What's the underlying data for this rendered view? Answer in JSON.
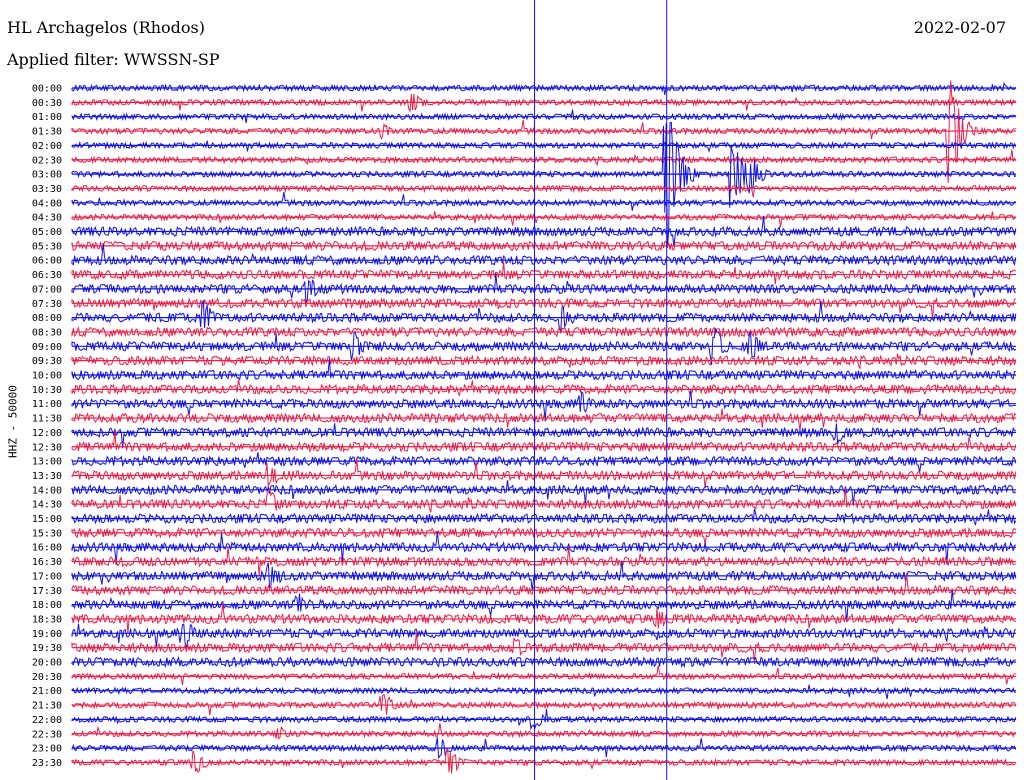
{
  "header": {
    "title": "HL Archagelos (Rhodos)",
    "filter": "Applied filter: WWSSN-SP",
    "date": "2022-02-07"
  },
  "chart_data": {
    "type": "line",
    "title": "HL Archagelos (Rhodos)",
    "ylabel": "HHZ - 50000",
    "xlabel": "",
    "colors": {
      "even": "#1010e0",
      "odd": "#e8204a",
      "marker": "#1010e0"
    },
    "rows": [
      "00:00",
      "00:30",
      "01:00",
      "01:30",
      "02:00",
      "02:30",
      "03:00",
      "03:30",
      "04:00",
      "04:30",
      "05:00",
      "05:30",
      "06:00",
      "06:30",
      "07:00",
      "07:30",
      "08:00",
      "08:30",
      "09:00",
      "09:30",
      "10:00",
      "10:30",
      "11:00",
      "11:30",
      "12:00",
      "12:30",
      "13:00",
      "13:30",
      "14:00",
      "14:30",
      "15:00",
      "15:30",
      "16:00",
      "16:30",
      "17:00",
      "17:30",
      "18:00",
      "18:30",
      "19:00",
      "19:30",
      "20:00",
      "20:30",
      "21:00",
      "21:30",
      "22:00",
      "22:30",
      "23:00",
      "23:30"
    ],
    "markers": [
      0.49,
      0.63
    ],
    "events": [
      {
        "row": 1,
        "pos": 0.36,
        "amp": 12
      },
      {
        "row": 3,
        "pos": 0.33,
        "amp": 8
      },
      {
        "row": 6,
        "pos": 0.63,
        "amp": 90
      },
      {
        "row": 6,
        "pos": 0.7,
        "amp": 40
      },
      {
        "row": 6,
        "pos": 0.72,
        "amp": 20
      },
      {
        "row": 3,
        "pos": 0.93,
        "amp": 60
      },
      {
        "row": 16,
        "pos": 0.14,
        "amp": 18
      },
      {
        "row": 16,
        "pos": 0.52,
        "amp": 14
      },
      {
        "row": 18,
        "pos": 0.68,
        "amp": 22
      },
      {
        "row": 18,
        "pos": 0.72,
        "amp": 18
      },
      {
        "row": 18,
        "pos": 0.3,
        "amp": 14
      },
      {
        "row": 14,
        "pos": 0.25,
        "amp": 14
      },
      {
        "row": 22,
        "pos": 0.54,
        "amp": 12
      },
      {
        "row": 24,
        "pos": 0.81,
        "amp": 14
      },
      {
        "row": 27,
        "pos": 0.21,
        "amp": 14
      },
      {
        "row": 29,
        "pos": 0.21,
        "amp": 16
      },
      {
        "row": 34,
        "pos": 0.21,
        "amp": 16
      },
      {
        "row": 36,
        "pos": 0.24,
        "amp": 14
      },
      {
        "row": 37,
        "pos": 0.62,
        "amp": 14
      },
      {
        "row": 38,
        "pos": 0.12,
        "amp": 16
      },
      {
        "row": 39,
        "pos": 0.47,
        "amp": 12
      },
      {
        "row": 43,
        "pos": 0.33,
        "amp": 14
      },
      {
        "row": 44,
        "pos": 0.49,
        "amp": 10
      },
      {
        "row": 45,
        "pos": 0.22,
        "amp": 8
      },
      {
        "row": 46,
        "pos": 0.39,
        "amp": 12
      },
      {
        "row": 47,
        "pos": 0.13,
        "amp": 14
      },
      {
        "row": 47,
        "pos": 0.4,
        "amp": 16
      }
    ]
  }
}
